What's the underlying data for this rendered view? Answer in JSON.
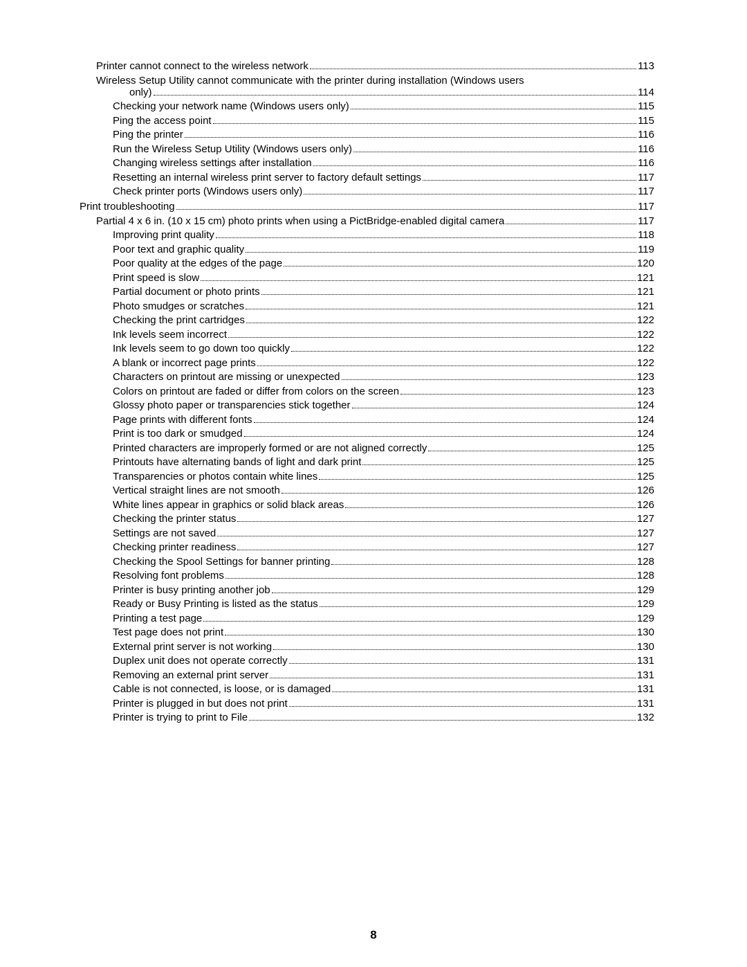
{
  "page_number": "8",
  "entries": [
    {
      "label": "Printer cannot connect to the wireless network",
      "page": "113",
      "indent": 1
    },
    {
      "label": "Wireless Setup Utility cannot communicate with the printer during installation (Windows users",
      "indent": 1,
      "wrap": true
    },
    {
      "label": "only)",
      "page": "114",
      "indent": "wrap"
    },
    {
      "label": "Checking your network name (Windows users only)",
      "page": "115",
      "indent": 2
    },
    {
      "label": "Ping the access point",
      "page": "115",
      "indent": 2
    },
    {
      "label": "Ping the printer",
      "page": "116",
      "indent": 2
    },
    {
      "label": "Run the Wireless Setup Utility (Windows users only)",
      "page": "116",
      "indent": 2
    },
    {
      "label": "Changing wireless settings after installation",
      "page": "116",
      "indent": 2
    },
    {
      "label": "Resetting an internal wireless print server to factory default settings",
      "page": "117",
      "indent": 2
    },
    {
      "label": "Check printer ports (Windows users only)",
      "page": "117",
      "indent": 2
    },
    {
      "label": "Print troubleshooting",
      "page": "117",
      "indent": 0,
      "section": true
    },
    {
      "label": "Partial 4 x 6 in. (10 x 15 cm) photo prints when using a PictBridge-enabled digital camera",
      "page": "117",
      "indent": 1
    },
    {
      "label": "Improving print quality",
      "page": "118",
      "indent": 2
    },
    {
      "label": "Poor text and graphic quality",
      "page": "119",
      "indent": 2
    },
    {
      "label": "Poor quality at the edges of the page",
      "page": "120",
      "indent": 2
    },
    {
      "label": "Print speed is slow",
      "page": "121",
      "indent": 2
    },
    {
      "label": "Partial document or photo prints",
      "page": "121",
      "indent": 2
    },
    {
      "label": "Photo smudges or scratches",
      "page": "121",
      "indent": 2
    },
    {
      "label": "Checking the print cartridges",
      "page": "122",
      "indent": 2
    },
    {
      "label": "Ink levels seem incorrect",
      "page": "122",
      "indent": 2
    },
    {
      "label": "Ink levels seem to go down too quickly",
      "page": "122",
      "indent": 2
    },
    {
      "label": "A blank or incorrect page prints",
      "page": "122",
      "indent": 2
    },
    {
      "label": "Characters on printout are missing or unexpected",
      "page": "123",
      "indent": 2
    },
    {
      "label": "Colors on printout are faded or differ from colors on the screen",
      "page": "123",
      "indent": 2
    },
    {
      "label": "Glossy photo paper or transparencies stick together",
      "page": "124",
      "indent": 2
    },
    {
      "label": "Page prints with different fonts",
      "page": "124",
      "indent": 2
    },
    {
      "label": "Print is too dark or smudged",
      "page": "124",
      "indent": 2
    },
    {
      "label": "Printed characters are improperly formed or are not aligned correctly",
      "page": "125",
      "indent": 2
    },
    {
      "label": "Printouts have alternating bands of light and dark print",
      "page": "125",
      "indent": 2
    },
    {
      "label": "Transparencies or photos contain white lines",
      "page": "125",
      "indent": 2
    },
    {
      "label": "Vertical straight lines are not smooth",
      "page": "126",
      "indent": 2
    },
    {
      "label": "White lines appear in graphics or solid black areas",
      "page": "126",
      "indent": 2
    },
    {
      "label": "Checking the printer status",
      "page": "127",
      "indent": 2
    },
    {
      "label": "Settings are not saved",
      "page": "127",
      "indent": 2
    },
    {
      "label": "Checking printer readiness",
      "page": "127",
      "indent": 2
    },
    {
      "label": "Checking the Spool Settings for banner printing",
      "page": "128",
      "indent": 2
    },
    {
      "label": "Resolving font problems",
      "page": "128",
      "indent": 2
    },
    {
      "label": "Printer is busy printing another job",
      "page": "129",
      "indent": 2
    },
    {
      "label": "Ready or Busy Printing is listed as the status",
      "page": "129",
      "indent": 2
    },
    {
      "label": "Printing a test page",
      "page": "129",
      "indent": 2
    },
    {
      "label": "Test page does not print",
      "page": "130",
      "indent": 2
    },
    {
      "label": "External print server is not working",
      "page": "130",
      "indent": 2
    },
    {
      "label": "Duplex unit does not operate correctly",
      "page": "131",
      "indent": 2
    },
    {
      "label": "Removing an external print server",
      "page": "131",
      "indent": 2
    },
    {
      "label": "Cable is not connected, is loose, or is damaged",
      "page": "131",
      "indent": 2
    },
    {
      "label": "Printer is plugged in but does not print",
      "page": "131",
      "indent": 2
    },
    {
      "label": "Printer is trying to print to File",
      "page": "132",
      "indent": 2
    }
  ]
}
